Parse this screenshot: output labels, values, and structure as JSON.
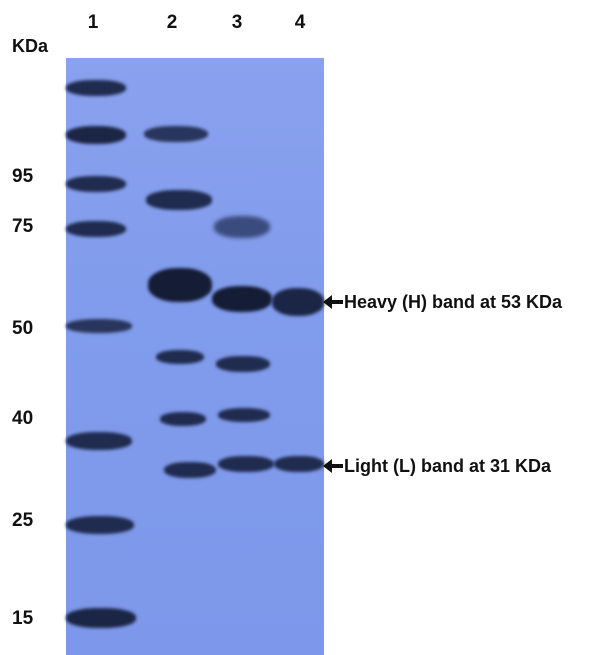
{
  "lane_labels": [
    "1",
    "2",
    "3",
    "4"
  ],
  "unit_label": "KDa",
  "marker_labels": [
    "95",
    "75",
    "50",
    "40",
    "25",
    "15"
  ],
  "annotations": {
    "heavy": "Heavy (H) band at 53 KDa",
    "light": "Light (L) band at 31 KDa"
  },
  "colors": {
    "gel_background": "#819cec",
    "band": "#1a2440",
    "text": "#111111"
  }
}
